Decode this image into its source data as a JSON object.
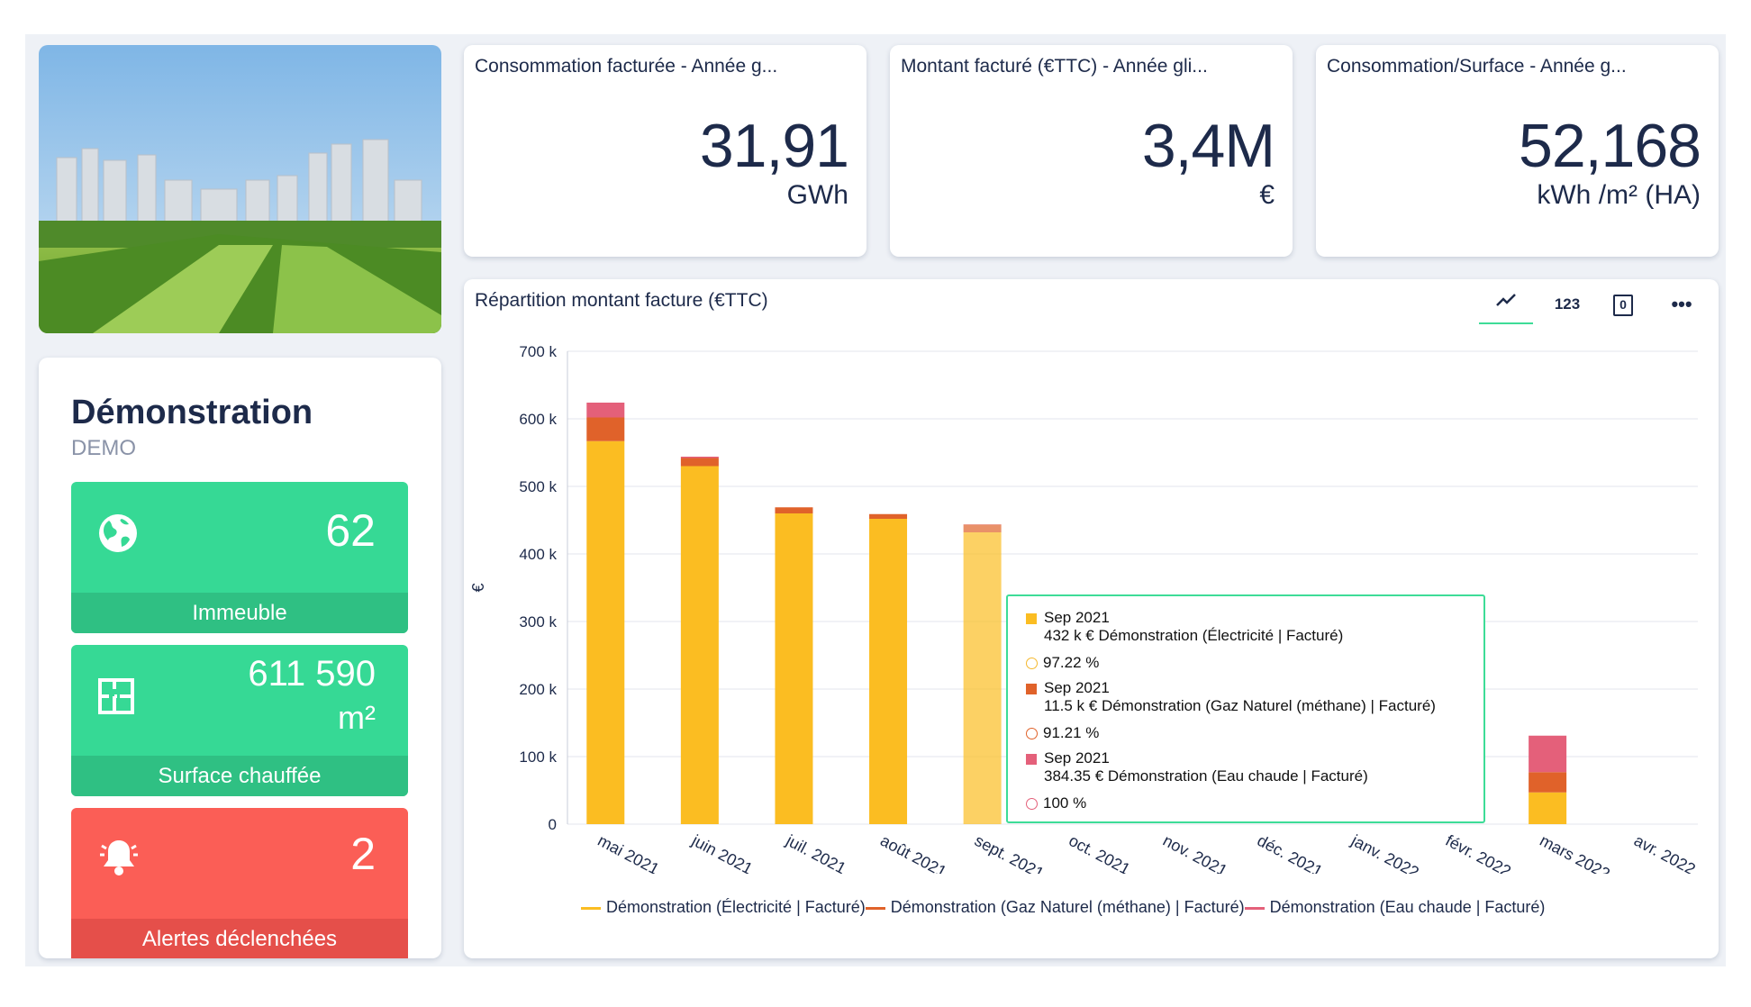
{
  "kpis": [
    {
      "title": "Consommation facturée - Année g...",
      "value": "31,91",
      "unit": "GWh"
    },
    {
      "title": "Montant facturé (€TTC) - Année gli...",
      "value": "3,4M",
      "unit": "€"
    },
    {
      "title": "Consommation/Surface - Année g...",
      "value": "52,168",
      "unit": "kWh /m² (HA)"
    }
  ],
  "site": {
    "name": "Démonstration",
    "code": "DEMO",
    "tiles": [
      {
        "value": "62",
        "label": "Immeuble",
        "icon": "globe-icon"
      },
      {
        "value": "611 590",
        "unit": "m²",
        "label": "Surface chauffée",
        "icon": "floorplan-icon"
      },
      {
        "value": "2",
        "label": "Alertes déclenchées",
        "icon": "bell-icon"
      }
    ]
  },
  "chart": {
    "title": "Répartition montant facture (€TTC)",
    "toolbar": {
      "line": "line-chart-icon",
      "numbers_label": "123",
      "zero_label": "0",
      "more": "more-icon"
    },
    "ylabel": "€",
    "tooltip": {
      "rows": [
        {
          "date": "Sep 2021",
          "text": "432 k € Démonstration (Électricité | Facturé)",
          "pct": "97.22 %",
          "color": "#f5b82e"
        },
        {
          "date": "Sep 2021",
          "text": "11.5 k € Démonstration (Gaz Naturel (méthane) | Facturé)",
          "pct": "91.21 %",
          "color": "#e0622a"
        },
        {
          "date": "Sep 2021",
          "text": "384.35 € Démonstration (Eau chaude | Facturé)",
          "pct": "100 %",
          "color": "#e4607a"
        }
      ]
    }
  },
  "chart_data": {
    "type": "bar",
    "stacked": true,
    "title": "Répartition montant facture (€TTC)",
    "ylabel": "€",
    "ylim": [
      0,
      700000
    ],
    "yticks": [
      "0",
      "100 k",
      "200 k",
      "300 k",
      "400 k",
      "500 k",
      "600 k",
      "700 k"
    ],
    "categories": [
      "mai 2021",
      "juin 2021",
      "juil. 2021",
      "août 2021",
      "sept. 2021",
      "oct. 2021",
      "nov. 2021",
      "déc. 2021",
      "janv. 2022",
      "févr. 2022",
      "mars 2022",
      "avr. 2022"
    ],
    "series": [
      {
        "name": "Démonstration (Électricité | Facturé)",
        "color": "#fbbd22",
        "values": [
          567000,
          530000,
          460000,
          452000,
          432000,
          0,
          0,
          0,
          0,
          0,
          47000,
          0
        ]
      },
      {
        "name": "Démonstration (Gaz Naturel (méthane) | Facturé)",
        "color": "#e0622a",
        "values": [
          35000,
          12000,
          9000,
          7000,
          11500,
          0,
          0,
          0,
          0,
          0,
          30000,
          0
        ]
      },
      {
        "name": "Démonstration (Eau chaude | Facturé)",
        "color": "#e4607a",
        "values": [
          22000,
          2000,
          0,
          0,
          384.35,
          0,
          0,
          0,
          0,
          0,
          54000,
          0
        ]
      }
    ],
    "grid": true,
    "legend": "bottom"
  }
}
